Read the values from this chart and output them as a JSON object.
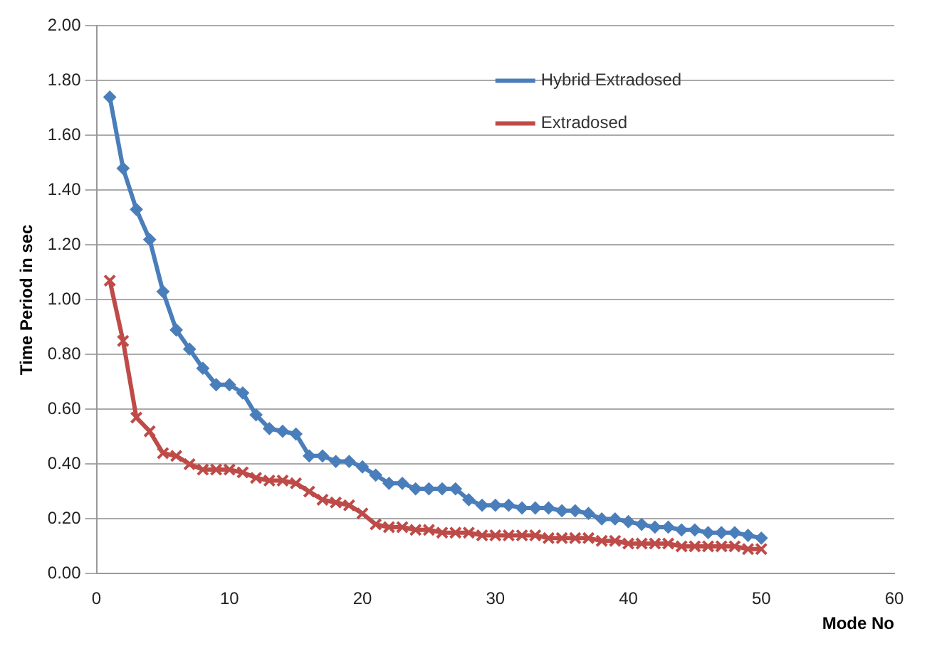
{
  "chart_data": {
    "type": "line",
    "xlabel": "Mode No",
    "ylabel": "Time Period in sec",
    "x": [
      1,
      2,
      3,
      4,
      5,
      6,
      7,
      8,
      9,
      10,
      11,
      12,
      13,
      14,
      15,
      16,
      17,
      18,
      19,
      20,
      21,
      22,
      23,
      24,
      25,
      26,
      27,
      28,
      29,
      30,
      31,
      32,
      33,
      34,
      35,
      36,
      37,
      38,
      39,
      40,
      41,
      42,
      43,
      44,
      45,
      46,
      47,
      48,
      49,
      50
    ],
    "series": [
      {
        "name": "Hybrid Extradosed",
        "color": "#4a7ebb",
        "marker": "diamond",
        "values": [
          1.74,
          1.48,
          1.33,
          1.22,
          1.03,
          0.89,
          0.82,
          0.75,
          0.69,
          0.69,
          0.66,
          0.58,
          0.53,
          0.52,
          0.51,
          0.43,
          0.43,
          0.41,
          0.41,
          0.39,
          0.36,
          0.33,
          0.33,
          0.31,
          0.31,
          0.31,
          0.31,
          0.27,
          0.25,
          0.25,
          0.25,
          0.24,
          0.24,
          0.24,
          0.23,
          0.23,
          0.22,
          0.2,
          0.2,
          0.19,
          0.18,
          0.17,
          0.17,
          0.16,
          0.16,
          0.15,
          0.15,
          0.15,
          0.14,
          0.13
        ]
      },
      {
        "name": "Extradosed",
        "color": "#be4b48",
        "marker": "cross",
        "values": [
          1.07,
          0.85,
          0.57,
          0.52,
          0.44,
          0.43,
          0.4,
          0.38,
          0.38,
          0.38,
          0.37,
          0.35,
          0.34,
          0.34,
          0.33,
          0.3,
          0.27,
          0.26,
          0.25,
          0.22,
          0.18,
          0.17,
          0.17,
          0.16,
          0.16,
          0.15,
          0.15,
          0.15,
          0.14,
          0.14,
          0.14,
          0.14,
          0.14,
          0.13,
          0.13,
          0.13,
          0.13,
          0.12,
          0.12,
          0.11,
          0.11,
          0.11,
          0.11,
          0.1,
          0.1,
          0.1,
          0.1,
          0.1,
          0.09,
          0.09
        ]
      }
    ],
    "xlim": [
      0,
      60
    ],
    "xticks": [
      0,
      10,
      20,
      30,
      40,
      50,
      60
    ],
    "ylim": [
      0,
      2
    ],
    "yticks": [
      {
        "value": 0,
        "label": "0.00"
      },
      {
        "value": 0.2,
        "label": "0.20"
      },
      {
        "value": 0.4,
        "label": "0.40"
      },
      {
        "value": 0.6,
        "label": "0.60"
      },
      {
        "value": 0.8,
        "label": "0.80"
      },
      {
        "value": 1,
        "label": "1.00"
      },
      {
        "value": 1.2,
        "label": "1.20"
      },
      {
        "value": 1.4,
        "label": "1.40"
      },
      {
        "value": 1.6,
        "label": "1.60"
      },
      {
        "value": 1.8,
        "label": "1.80"
      },
      {
        "value": 2,
        "label": "2.00"
      }
    ],
    "grid": "y",
    "legend": "top right",
    "line_style": "solid"
  }
}
